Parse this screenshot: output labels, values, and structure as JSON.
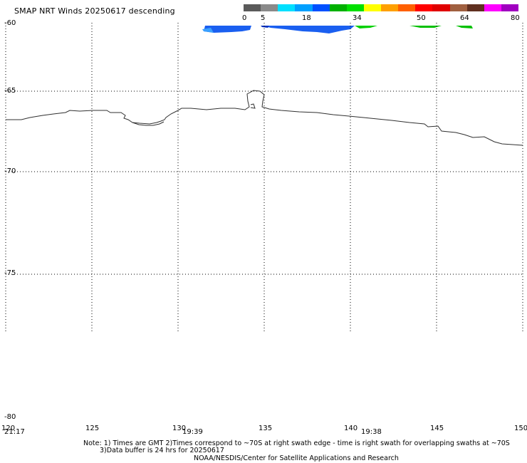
{
  "title": "SMAP NRT Winds  20250617 descending",
  "scale": {
    "labels": [
      "0",
      "5",
      "18",
      "34",
      "50",
      "64",
      "80"
    ],
    "colors": [
      "#5a5a5a",
      "#8a8a8a",
      "#00e0ff",
      "#00a0ff",
      "#0050ff",
      "#00b000",
      "#00e000",
      "#ffff00",
      "#ffa000",
      "#ff6000",
      "#ff0000",
      "#e00000",
      "#a06040",
      "#603020",
      "#ff00ff",
      "#a000c0"
    ]
  },
  "lat_labels": [
    "-60",
    "-65",
    "-70",
    "-75",
    "-80"
  ],
  "lon_labels": [
    "120",
    "125",
    "130",
    "135",
    "140",
    "145",
    "150"
  ],
  "times": [
    "21:17",
    "19:39",
    "19:38"
  ],
  "notes": {
    "line1": "Note: 1) Times are GMT 2)Times correspond to ~70S at right swath edge - time is right swath for overlapping swaths at ~70S",
    "line2": "3)Data buffer is 24 hrs for 20250617",
    "line3": "NOAA/NESDIS/Center for Satellite Applications and Research"
  }
}
